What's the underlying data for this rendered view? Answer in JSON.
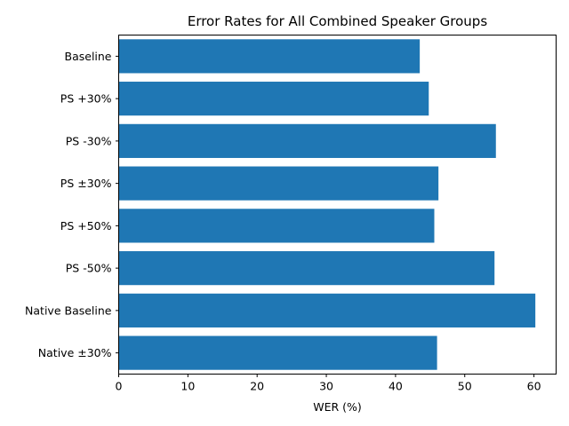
{
  "chart_data": {
    "type": "bar",
    "orientation": "horizontal",
    "title": "Error Rates for All Combined Speaker Groups",
    "xlabel": "WER (%)",
    "ylabel": "",
    "categories": [
      "Baseline",
      "PS +30%",
      "PS -30%",
      "PS ±30%",
      "PS +50%",
      "PS -50%",
      "Native Baseline",
      "Native ±30%"
    ],
    "values": [
      43.5,
      44.8,
      54.5,
      46.2,
      45.6,
      54.3,
      60.2,
      46.0
    ],
    "xlim": [
      0,
      63.2
    ],
    "xticks": [
      "0",
      "10",
      "20",
      "30",
      "40",
      "50",
      "60"
    ],
    "grid": false,
    "bar_color": "#1f77b4"
  }
}
